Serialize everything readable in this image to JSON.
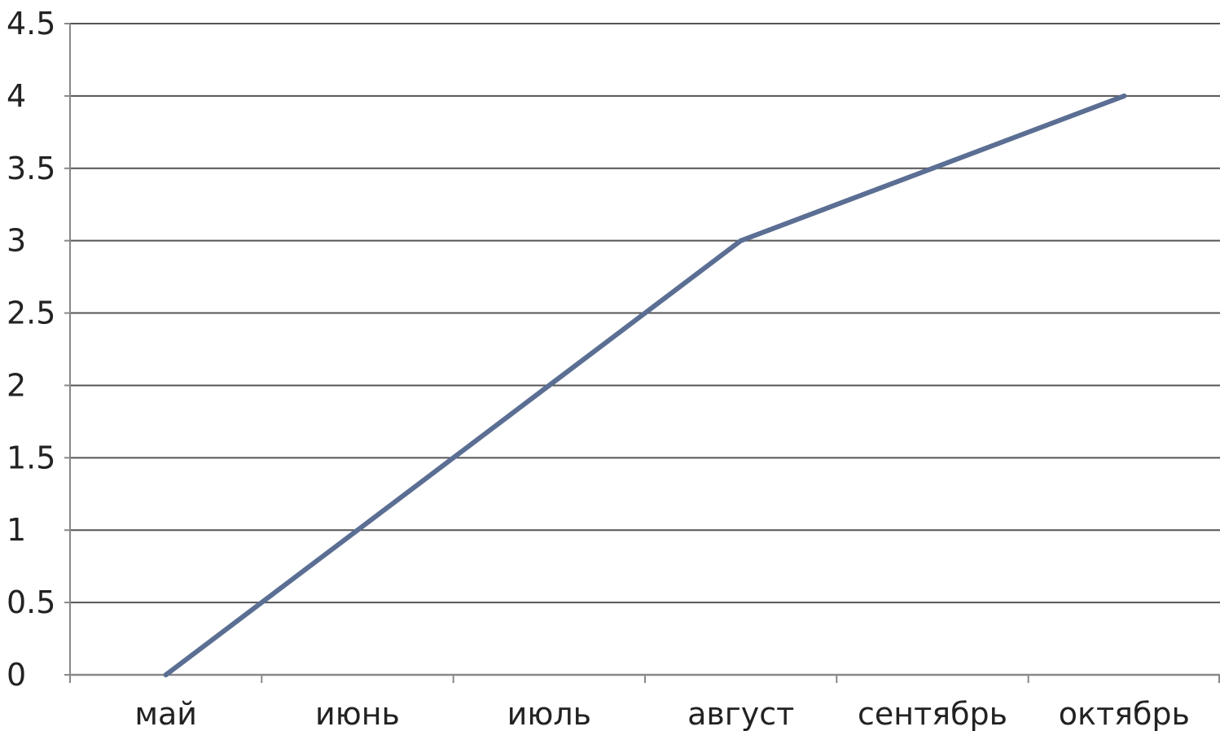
{
  "chart_data": {
    "type": "line",
    "categories": [
      "май",
      "июнь",
      "июль",
      "август",
      "сентябрь",
      "октябрь"
    ],
    "series": [
      {
        "values": [
          0,
          1,
          2,
          3,
          3.5,
          4
        ]
      }
    ],
    "title": "",
    "xlabel": "",
    "ylabel": "",
    "ylim": [
      0,
      4.5
    ],
    "yticks": [
      0,
      0.5,
      1,
      1.5,
      2,
      2.5,
      3,
      3.5,
      4,
      4.5
    ],
    "ytick_labels": [
      "0",
      "0.5",
      "1",
      "1.5",
      "2",
      "2.5",
      "3",
      "3.5",
      "4",
      "4.5"
    ],
    "grid": true,
    "legend": "none",
    "line_color": "#5B6E93",
    "grid_color": "#555555",
    "axis_color": "#888888"
  }
}
